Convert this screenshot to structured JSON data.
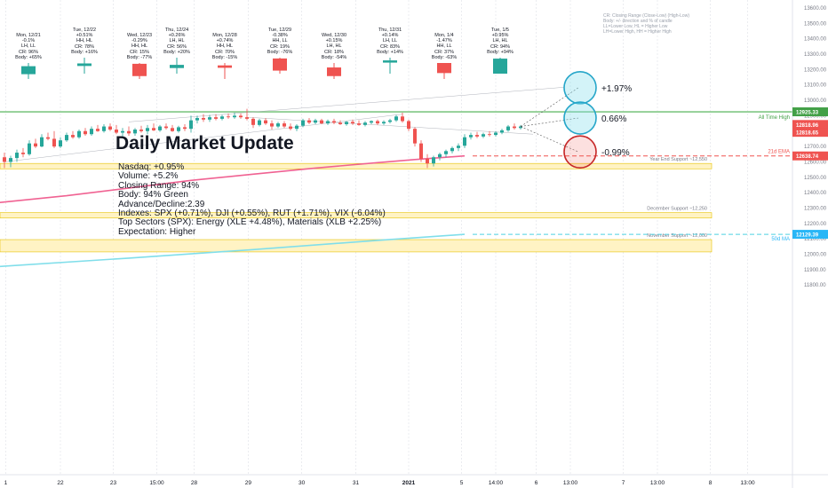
{
  "title": "Daily Market Update",
  "notes": [
    "Nasdaq: +0.95%",
    "Volume: +5.2%",
    "Closing Range: 94%",
    "Body: 94% Green",
    "Advance/Decline:2.39",
    "Indexes: SPX (+0.71%), DJI (+0.55%), RUT (+1.71%), VIX (-6.04%)",
    "Top Sectors (SPX): Energy (XLE +4.48%), Materials (XLB +2.25%)",
    "Expectation: Higher"
  ],
  "legend": [
    "CR: Closing Range (Close-Low) (High-Low)",
    "Body: +/- direction and % of candle",
    "LL=Lower Low, HL = Higher Low",
    "LH=Lower High, HH = Higher High"
  ],
  "colors": {
    "up": "#26a69a",
    "down": "#ef5350",
    "ema21": "#f06292",
    "ma50": "#80deea",
    "ath": "#81c784",
    "support": "#fff3c4",
    "supportBorder": "#e6c200"
  },
  "daily_captions": [
    {
      "date": "Mon, 12/21",
      "lines": [
        "-0.1%",
        "LH, LL",
        "CR: 96%",
        "Body: +65%"
      ],
      "color": "up",
      "o": 0.3,
      "c": 0.8,
      "h": 1.0,
      "l": 0.0
    },
    {
      "date": "Tue, 12/22",
      "lines": [
        "+0.51%",
        "HH, HL",
        "CR: 78%",
        "Body: +16%"
      ],
      "color": "up",
      "o": 0.48,
      "c": 0.64,
      "h": 1.0,
      "l": 0.0
    },
    {
      "date": "Wed, 12/23",
      "lines": [
        "-0.29%",
        "HH, HL",
        "CR: 15%",
        "Body: -77%"
      ],
      "color": "down",
      "o": 0.95,
      "c": 0.18,
      "h": 1.0,
      "l": 0.0
    },
    {
      "date": "Thu, 12/24",
      "lines": [
        "+0.26%",
        "LH, HL",
        "CR: 56%",
        "Body: +20%"
      ],
      "color": "up",
      "o": 0.35,
      "c": 0.55,
      "h": 1.0,
      "l": 0.0
    },
    {
      "date": "Mon, 12/28",
      "lines": [
        "+0.74%",
        "HH, HL",
        "CR: 70%",
        "Body: -15%"
      ],
      "color": "down",
      "o": 0.85,
      "c": 0.7,
      "h": 1.0,
      "l": 0.0
    },
    {
      "date": "Tue, 12/29",
      "lines": [
        "-0.38%",
        "HH, LL",
        "CR: 19%",
        "Body: -76%"
      ],
      "color": "down",
      "o": 0.95,
      "c": 0.19,
      "h": 1.0,
      "l": 0.0
    },
    {
      "date": "Wed, 12/30",
      "lines": [
        "+0.15%",
        "LH, HL",
        "CR: 18%",
        "Body: -54%"
      ],
      "color": "down",
      "o": 0.72,
      "c": 0.18,
      "h": 1.0,
      "l": 0.0
    },
    {
      "date": "Thu, 12/31",
      "lines": [
        "+0.14%",
        "LH, LL",
        "CR: 83%",
        "Body: +14%"
      ],
      "color": "up",
      "o": 0.69,
      "c": 0.83,
      "h": 1.0,
      "l": 0.0
    },
    {
      "date": "Mon, 1/4",
      "lines": [
        "-1.47%",
        "HH, LL",
        "CR: 37%",
        "Body: -63%"
      ],
      "color": "down",
      "o": 1.0,
      "c": 0.37,
      "h": 1.0,
      "l": 0.0
    },
    {
      "date": "Tue, 1/5",
      "lines": [
        "+0.95%",
        "LH, HL",
        "CR: 94%",
        "Body: +94%"
      ],
      "color": "up",
      "o": 0.0,
      "c": 0.94,
      "h": 1.0,
      "l": 0.0
    }
  ],
  "chart_data": {
    "type": "candlestick",
    "y_ticks": [
      13600,
      13500,
      13400,
      13300,
      13200,
      13100,
      13000,
      12900,
      12800,
      12700,
      12600,
      12500,
      12400,
      12300,
      12200,
      12100,
      12000,
      11900,
      11800
    ],
    "ylim": [
      11800,
      13650
    ],
    "x_ticks": [
      {
        "label": "1",
        "t": 0.2
      },
      {
        "label": "22",
        "t": 9.0
      },
      {
        "label": "23",
        "t": 17.5
      },
      {
        "label": "15:00",
        "t": 24.5
      },
      {
        "label": "28",
        "t": 30.5
      },
      {
        "label": "29",
        "t": 39.2
      },
      {
        "label": "30",
        "t": 47.8
      },
      {
        "label": "31",
        "t": 56.5
      },
      {
        "label": "2021",
        "t": 65.0
      },
      {
        "label": "5",
        "t": 73.5
      },
      {
        "label": "14:00",
        "t": 79.0
      },
      {
        "label": "6",
        "t": 85.5
      },
      {
        "label": "13:00",
        "t": 91.0
      },
      {
        "label": "7",
        "t": 99.5
      },
      {
        "label": "13:00",
        "t": 105.0
      },
      {
        "label": "8",
        "t": 113.5
      },
      {
        "label": "13:00",
        "t": 119.5
      }
    ],
    "price_labels": [
      {
        "label": "12925.33",
        "value": 12925.33,
        "color": "#43a047"
      },
      {
        "label": "12818.96",
        "value": 12843,
        "color": "#ef5350"
      },
      {
        "label": "12818.65",
        "value": 12792,
        "color": "#ef5350"
      },
      {
        "label": "12638.74",
        "value": 12638.74,
        "color": "#ef5350"
      },
      {
        "label": "12129.39",
        "value": 12129.39,
        "color": "#29b6f6"
      }
    ],
    "levels": [
      {
        "name": "All Time High",
        "value": 12925.33,
        "color": "#81c784"
      },
      {
        "name": "21d EMA",
        "value": 12638.74,
        "color": "#ef5350"
      },
      {
        "name": "50d MA",
        "value": 12129.39,
        "color": "#4dd0e1"
      }
    ],
    "zones": [
      {
        "name": "Year End Support ~12,550",
        "from": 12555,
        "to": 12590
      },
      {
        "name": "December Support ~12,250",
        "from": 12235,
        "to": 12270
      },
      {
        "name": "November Support ~12,000",
        "from": 12015,
        "to": 12095
      }
    ],
    "ema21": [
      [
        -1,
        12335
      ],
      [
        10,
        12380
      ],
      [
        20,
        12430
      ],
      [
        30,
        12480
      ],
      [
        40,
        12520
      ],
      [
        50,
        12560
      ],
      [
        60,
        12595
      ],
      [
        66,
        12615
      ],
      [
        74,
        12638.74
      ]
    ],
    "ma50": [
      [
        -1,
        11920
      ],
      [
        20,
        11975
      ],
      [
        40,
        12030
      ],
      [
        60,
        12090
      ],
      [
        74,
        12129.39
      ]
    ],
    "projections": [
      {
        "label": "+1.97%",
        "value": 13082,
        "kind": "bull"
      },
      {
        "label": "0.66%",
        "value": 12885,
        "kind": "neutral"
      },
      {
        "label": "-0.99%",
        "value": 12665,
        "kind": "bear"
      }
    ],
    "candles": [
      {
        "t": 0,
        "o": 12630,
        "h": 12660,
        "l": 12560,
        "c": 12600
      },
      {
        "t": 1,
        "o": 12600,
        "h": 12640,
        "l": 12565,
        "c": 12625
      },
      {
        "t": 2,
        "o": 12625,
        "h": 12680,
        "l": 12600,
        "c": 12660
      },
      {
        "t": 3,
        "o": 12660,
        "h": 12690,
        "l": 12630,
        "c": 12650
      },
      {
        "t": 4,
        "o": 12650,
        "h": 12740,
        "l": 12640,
        "c": 12720
      },
      {
        "t": 5,
        "o": 12720,
        "h": 12750,
        "l": 12690,
        "c": 12700
      },
      {
        "t": 6,
        "o": 12700,
        "h": 12780,
        "l": 12695,
        "c": 12760
      },
      {
        "t": 7,
        "o": 12760,
        "h": 12790,
        "l": 12740,
        "c": 12750
      },
      {
        "t": 8,
        "o": 12750,
        "h": 12800,
        "l": 12690,
        "c": 12700
      },
      {
        "t": 9,
        "o": 12700,
        "h": 12760,
        "l": 12690,
        "c": 12740
      },
      {
        "t": 10,
        "o": 12740,
        "h": 12790,
        "l": 12730,
        "c": 12775
      },
      {
        "t": 11,
        "o": 12775,
        "h": 12800,
        "l": 12750,
        "c": 12760
      },
      {
        "t": 12,
        "o": 12760,
        "h": 12810,
        "l": 12750,
        "c": 12800
      },
      {
        "t": 13,
        "o": 12800,
        "h": 12820,
        "l": 12770,
        "c": 12780
      },
      {
        "t": 14,
        "o": 12780,
        "h": 12830,
        "l": 12770,
        "c": 12815
      },
      {
        "t": 15,
        "o": 12815,
        "h": 12840,
        "l": 12795,
        "c": 12800
      },
      {
        "t": 16,
        "o": 12800,
        "h": 12845,
        "l": 12790,
        "c": 12830
      },
      {
        "t": 17,
        "o": 12830,
        "h": 12850,
        "l": 12800,
        "c": 12810
      },
      {
        "t": 18,
        "o": 12810,
        "h": 12840,
        "l": 12780,
        "c": 12790
      },
      {
        "t": 19,
        "o": 12790,
        "h": 12820,
        "l": 12760,
        "c": 12800
      },
      {
        "t": 20,
        "o": 12800,
        "h": 12830,
        "l": 12770,
        "c": 12785
      },
      {
        "t": 21,
        "o": 12785,
        "h": 12820,
        "l": 12770,
        "c": 12810
      },
      {
        "t": 22,
        "o": 12810,
        "h": 12835,
        "l": 12790,
        "c": 12800
      },
      {
        "t": 23,
        "o": 12800,
        "h": 12840,
        "l": 12780,
        "c": 12820
      },
      {
        "t": 24,
        "o": 12820,
        "h": 12850,
        "l": 12800,
        "c": 12805
      },
      {
        "t": 25,
        "o": 12805,
        "h": 12840,
        "l": 12795,
        "c": 12830
      },
      {
        "t": 26,
        "o": 12830,
        "h": 12850,
        "l": 12810,
        "c": 12820
      },
      {
        "t": 27,
        "o": 12820,
        "h": 12840,
        "l": 12795,
        "c": 12800
      },
      {
        "t": 28,
        "o": 12800,
        "h": 12835,
        "l": 12790,
        "c": 12825
      },
      {
        "t": 29,
        "o": 12825,
        "h": 12845,
        "l": 12800,
        "c": 12815
      },
      {
        "t": 30,
        "o": 12815,
        "h": 12900,
        "l": 12790,
        "c": 12870
      },
      {
        "t": 31,
        "o": 12870,
        "h": 12900,
        "l": 12850,
        "c": 12885
      },
      {
        "t": 32,
        "o": 12885,
        "h": 12910,
        "l": 12860,
        "c": 12875
      },
      {
        "t": 33,
        "o": 12875,
        "h": 12905,
        "l": 12860,
        "c": 12890
      },
      {
        "t": 34,
        "o": 12890,
        "h": 12910,
        "l": 12870,
        "c": 12880
      },
      {
        "t": 35,
        "o": 12880,
        "h": 12905,
        "l": 12870,
        "c": 12895
      },
      {
        "t": 36,
        "o": 12895,
        "h": 12915,
        "l": 12880,
        "c": 12890
      },
      {
        "t": 37,
        "o": 12890,
        "h": 12920,
        "l": 12880,
        "c": 12900
      },
      {
        "t": 38,
        "o": 12900,
        "h": 12915,
        "l": 12880,
        "c": 12890
      },
      {
        "t": 39,
        "o": 12890,
        "h": 12945,
        "l": 12870,
        "c": 12880
      },
      {
        "t": 40,
        "o": 12880,
        "h": 12890,
        "l": 12820,
        "c": 12840
      },
      {
        "t": 41,
        "o": 12840,
        "h": 12880,
        "l": 12830,
        "c": 12870
      },
      {
        "t": 42,
        "o": 12870,
        "h": 12885,
        "l": 12840,
        "c": 12850
      },
      {
        "t": 43,
        "o": 12850,
        "h": 12870,
        "l": 12810,
        "c": 12830
      },
      {
        "t": 44,
        "o": 12830,
        "h": 12860,
        "l": 12820,
        "c": 12850
      },
      {
        "t": 45,
        "o": 12850,
        "h": 12865,
        "l": 12820,
        "c": 12830
      },
      {
        "t": 46,
        "o": 12830,
        "h": 12850,
        "l": 12805,
        "c": 12815
      },
      {
        "t": 47,
        "o": 12815,
        "h": 12845,
        "l": 12800,
        "c": 12835
      },
      {
        "t": 48,
        "o": 12835,
        "h": 12880,
        "l": 12825,
        "c": 12870
      },
      {
        "t": 49,
        "o": 12870,
        "h": 12885,
        "l": 12845,
        "c": 12855
      },
      {
        "t": 50,
        "o": 12855,
        "h": 12880,
        "l": 12845,
        "c": 12870
      },
      {
        "t": 51,
        "o": 12870,
        "h": 12880,
        "l": 12845,
        "c": 12850
      },
      {
        "t": 52,
        "o": 12850,
        "h": 12875,
        "l": 12840,
        "c": 12865
      },
      {
        "t": 53,
        "o": 12865,
        "h": 12880,
        "l": 12845,
        "c": 12855
      },
      {
        "t": 54,
        "o": 12855,
        "h": 12870,
        "l": 12840,
        "c": 12845
      },
      {
        "t": 55,
        "o": 12845,
        "h": 12865,
        "l": 12835,
        "c": 12860
      },
      {
        "t": 56,
        "o": 12860,
        "h": 12875,
        "l": 12840,
        "c": 12850
      },
      {
        "t": 57,
        "o": 12850,
        "h": 12870,
        "l": 12835,
        "c": 12840
      },
      {
        "t": 58,
        "o": 12840,
        "h": 12865,
        "l": 12830,
        "c": 12855
      },
      {
        "t": 59,
        "o": 12855,
        "h": 12870,
        "l": 12845,
        "c": 12865
      },
      {
        "t": 60,
        "o": 12865,
        "h": 12875,
        "l": 12840,
        "c": 12850
      },
      {
        "t": 61,
        "o": 12850,
        "h": 12870,
        "l": 12840,
        "c": 12860
      },
      {
        "t": 62,
        "o": 12860,
        "h": 12880,
        "l": 12850,
        "c": 12870
      },
      {
        "t": 63,
        "o": 12870,
        "h": 12905,
        "l": 12860,
        "c": 12895
      },
      {
        "t": 64,
        "o": 12895,
        "h": 12920,
        "l": 12855,
        "c": 12865
      },
      {
        "t": 65,
        "o": 12865,
        "h": 12875,
        "l": 12800,
        "c": 12815
      },
      {
        "t": 66,
        "o": 12815,
        "h": 12825,
        "l": 12700,
        "c": 12720
      },
      {
        "t": 67,
        "o": 12720,
        "h": 12740,
        "l": 12600,
        "c": 12620
      },
      {
        "t": 68,
        "o": 12620,
        "h": 12650,
        "l": 12560,
        "c": 12590
      },
      {
        "t": 69,
        "o": 12590,
        "h": 12640,
        "l": 12570,
        "c": 12630
      },
      {
        "t": 70,
        "o": 12630,
        "h": 12660,
        "l": 12610,
        "c": 12650
      },
      {
        "t": 71,
        "o": 12650,
        "h": 12680,
        "l": 12630,
        "c": 12670
      },
      {
        "t": 72,
        "o": 12670,
        "h": 12700,
        "l": 12655,
        "c": 12690
      },
      {
        "t": 73,
        "o": 12690,
        "h": 12720,
        "l": 12670,
        "c": 12705
      },
      {
        "t": 74,
        "o": 12705,
        "h": 12780,
        "l": 12690,
        "c": 12760
      },
      {
        "t": 75,
        "o": 12760,
        "h": 12790,
        "l": 12745,
        "c": 12775
      },
      {
        "t": 76,
        "o": 12775,
        "h": 12795,
        "l": 12755,
        "c": 12765
      },
      {
        "t": 77,
        "o": 12765,
        "h": 12790,
        "l": 12755,
        "c": 12780
      },
      {
        "t": 78,
        "o": 12780,
        "h": 12800,
        "l": 12765,
        "c": 12775
      },
      {
        "t": 79,
        "o": 12775,
        "h": 12800,
        "l": 12765,
        "c": 12790
      },
      {
        "t": 80,
        "o": 12790,
        "h": 12815,
        "l": 12780,
        "c": 12805
      },
      {
        "t": 81,
        "o": 12805,
        "h": 12840,
        "l": 12795,
        "c": 12830
      },
      {
        "t": 82,
        "o": 12830,
        "h": 12850,
        "l": 12810,
        "c": 12820
      },
      {
        "t": 83,
        "o": 12820,
        "h": 12840,
        "l": 12810,
        "c": 12830
      }
    ]
  }
}
